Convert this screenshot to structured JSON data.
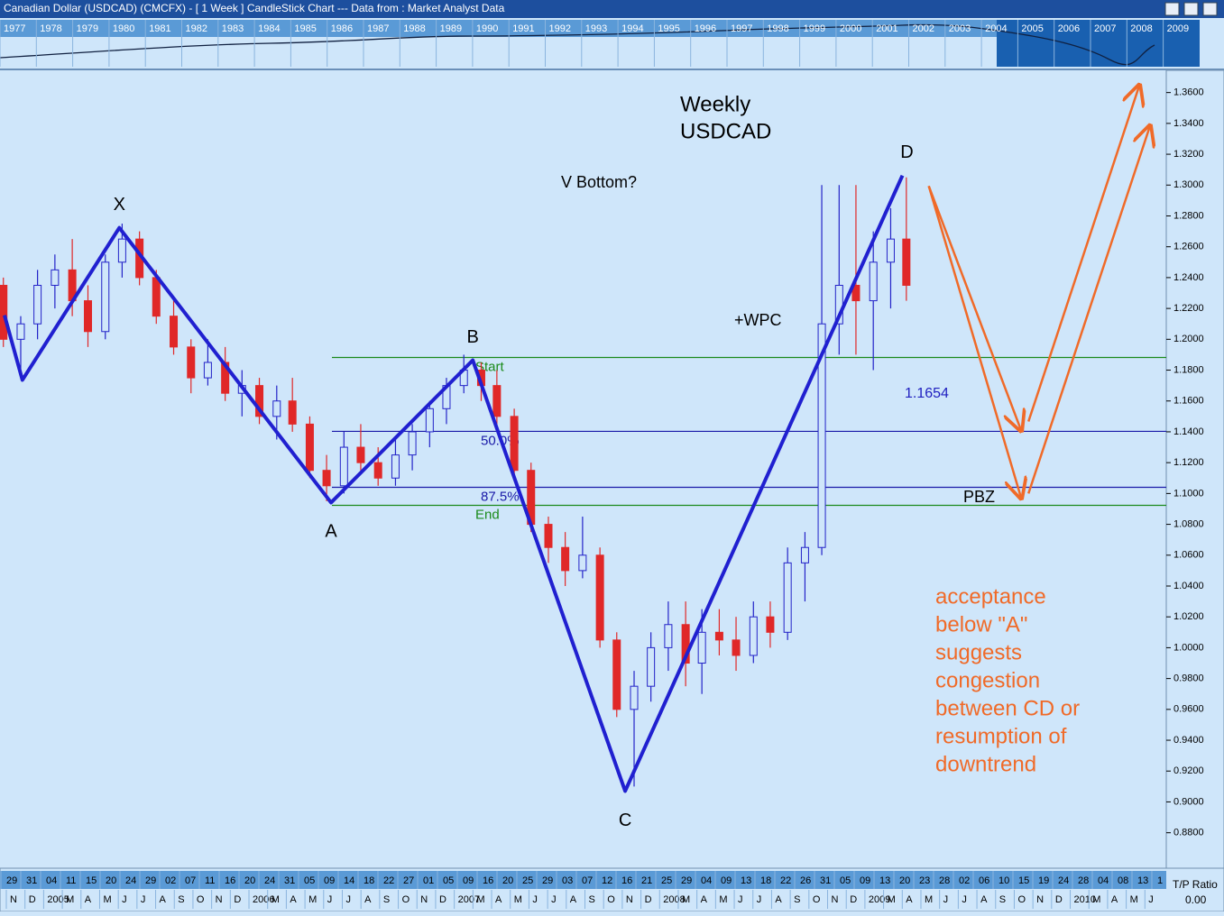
{
  "window_title": "Canadian Dollar (USDCAD) (CMCFX) -  [ 1 Week ] CandleStick Chart --- Data from : Market Analyst Data",
  "overview_years": [
    "1977",
    "1978",
    "1979",
    "1980",
    "1981",
    "1982",
    "1983",
    "1984",
    "1985",
    "1986",
    "1987",
    "1988",
    "1989",
    "1990",
    "1991",
    "1992",
    "1993",
    "1994",
    "1995",
    "1996",
    "1997",
    "1998",
    "1999",
    "2000",
    "2001",
    "2002",
    "2003",
    "2004",
    "2005",
    "2006",
    "2007",
    "2008",
    "2009"
  ],
  "chart_data": {
    "type": "candlestick",
    "xlim": [
      "2004-10-09",
      "2010-06-22"
    ],
    "ylim": [
      0.857,
      1.375
    ],
    "yticks": [
      {
        "value": 0.88,
        "label": "0.8800"
      },
      {
        "value": 0.9,
        "label": "0.9000"
      },
      {
        "value": 0.92,
        "label": "0.9200"
      },
      {
        "value": 0.94,
        "label": "0.9400"
      },
      {
        "value": 0.96,
        "label": "0.9600"
      },
      {
        "value": 0.98,
        "label": "0.9800"
      },
      {
        "value": 1.0,
        "label": "1.0000"
      },
      {
        "value": 1.02,
        "label": "1.0200"
      },
      {
        "value": 1.04,
        "label": "1.0400"
      },
      {
        "value": 1.06,
        "label": "1.0600"
      },
      {
        "value": 1.08,
        "label": "1.0800"
      },
      {
        "value": 1.1,
        "label": "1.1000"
      },
      {
        "value": 1.12,
        "label": "1.1200"
      },
      {
        "value": 1.14,
        "label": "1.1400"
      },
      {
        "value": 1.16,
        "label": "1.1600"
      },
      {
        "value": 1.18,
        "label": "1.1800"
      },
      {
        "value": 1.2,
        "label": "1.2000"
      },
      {
        "value": 1.22,
        "label": "1.2200"
      },
      {
        "value": 1.24,
        "label": "1.2400"
      },
      {
        "value": 1.26,
        "label": "1.2600"
      },
      {
        "value": 1.28,
        "label": "1.2800"
      },
      {
        "value": 1.3,
        "label": "1.3000"
      },
      {
        "value": 1.32,
        "label": "1.3200"
      },
      {
        "value": 1.34,
        "label": "1.3400"
      },
      {
        "value": 1.36,
        "label": "1.3600"
      }
    ],
    "x_day_labels": [
      "29",
      "31",
      "04",
      "11",
      "15",
      "20",
      "24",
      "29",
      "02",
      "07",
      "11",
      "16",
      "20",
      "24",
      "31",
      "05",
      "09",
      "14",
      "18",
      "22",
      "27",
      "01",
      "05",
      "09",
      "16",
      "20",
      "25",
      "29",
      "03",
      "07",
      "12",
      "16",
      "21",
      "25",
      "29",
      "04",
      "09",
      "13",
      "18",
      "22",
      "26",
      "31",
      "05",
      "09",
      "13",
      "20",
      "23",
      "28",
      "02",
      "06",
      "10",
      "15",
      "19",
      "24",
      "28",
      "04",
      "08",
      "13",
      "1"
    ],
    "x_month_labels": [
      "N",
      "D",
      "2005",
      "M",
      "A",
      "M",
      "J",
      "J",
      "A",
      "S",
      "O",
      "N",
      "D",
      "2006",
      "M",
      "A",
      "M",
      "J",
      "J",
      "A",
      "S",
      "O",
      "N",
      "D",
      "2007",
      "M",
      "A",
      "M",
      "J",
      "J",
      "A",
      "S",
      "O",
      "N",
      "D",
      "2008",
      "M",
      "A",
      "M",
      "J",
      "J",
      "A",
      "S",
      "O",
      "N",
      "D",
      "2009",
      "M",
      "A",
      "M",
      "J",
      "J",
      "A",
      "S",
      "O",
      "N",
      "D",
      "2010",
      "M",
      "A",
      "M",
      "J"
    ],
    "up_color": "#2323c8",
    "down_color": "#e02828",
    "x": [
      "2004-10-15",
      "2004-11-15",
      "2004-12-15",
      "2005-01-15",
      "2005-02-15",
      "2005-03-15",
      "2005-04-15",
      "2005-05-15",
      "2005-06-15",
      "2005-07-15",
      "2005-08-15",
      "2005-09-15",
      "2005-10-15",
      "2005-11-15",
      "2005-12-15",
      "2006-01-15",
      "2006-02-15",
      "2006-03-15",
      "2006-04-15",
      "2006-05-15",
      "2006-06-15",
      "2006-07-15",
      "2006-08-15",
      "2006-09-15",
      "2006-10-15",
      "2006-11-15",
      "2006-12-15",
      "2007-01-15",
      "2007-02-15",
      "2007-03-15",
      "2007-04-15",
      "2007-05-15",
      "2007-06-15",
      "2007-07-15",
      "2007-08-15",
      "2007-09-15",
      "2007-10-15",
      "2007-11-15",
      "2007-12-15",
      "2008-01-15",
      "2008-02-15",
      "2008-03-15",
      "2008-04-15",
      "2008-05-15",
      "2008-06-15",
      "2008-07-15",
      "2008-08-15",
      "2008-09-15",
      "2008-10-15",
      "2008-11-15",
      "2008-12-15",
      "2009-01-15",
      "2009-02-15",
      "2009-03-15"
    ],
    "open": [
      1.235,
      1.2,
      1.21,
      1.235,
      1.245,
      1.225,
      1.205,
      1.25,
      1.265,
      1.24,
      1.215,
      1.195,
      1.175,
      1.185,
      1.165,
      1.17,
      1.15,
      1.16,
      1.145,
      1.115,
      1.105,
      1.13,
      1.12,
      1.11,
      1.125,
      1.14,
      1.155,
      1.17,
      1.18,
      1.17,
      1.15,
      1.115,
      1.08,
      1.065,
      1.05,
      1.06,
      1.005,
      0.96,
      0.975,
      1.0,
      1.015,
      0.99,
      1.01,
      1.005,
      0.995,
      1.02,
      1.01,
      1.055,
      1.065,
      1.21,
      1.235,
      1.225,
      1.25,
      1.265
    ],
    "high": [
      1.24,
      1.215,
      1.245,
      1.255,
      1.265,
      1.235,
      1.255,
      1.275,
      1.27,
      1.245,
      1.225,
      1.2,
      1.2,
      1.195,
      1.18,
      1.175,
      1.17,
      1.175,
      1.15,
      1.125,
      1.14,
      1.145,
      1.13,
      1.135,
      1.145,
      1.16,
      1.175,
      1.19,
      1.185,
      1.18,
      1.155,
      1.12,
      1.085,
      1.075,
      1.085,
      1.065,
      1.01,
      0.985,
      1.01,
      1.03,
      1.03,
      1.025,
      1.025,
      1.02,
      1.03,
      1.03,
      1.065,
      1.075,
      1.3,
      1.3,
      1.3,
      1.27,
      1.285,
      1.305
    ],
    "low": [
      1.195,
      1.175,
      1.2,
      1.22,
      1.215,
      1.195,
      1.2,
      1.24,
      1.235,
      1.21,
      1.19,
      1.165,
      1.17,
      1.16,
      1.15,
      1.145,
      1.135,
      1.14,
      1.11,
      1.095,
      1.1,
      1.115,
      1.105,
      1.105,
      1.115,
      1.13,
      1.145,
      1.165,
      1.16,
      1.14,
      1.11,
      1.075,
      1.055,
      1.04,
      1.045,
      1.0,
      0.955,
      0.91,
      0.965,
      0.985,
      0.975,
      0.97,
      0.995,
      0.985,
      0.99,
      1.0,
      1.005,
      1.03,
      1.06,
      1.19,
      1.19,
      1.18,
      1.22,
      1.225
    ],
    "close": [
      1.2,
      1.21,
      1.235,
      1.245,
      1.225,
      1.205,
      1.25,
      1.265,
      1.24,
      1.215,
      1.195,
      1.175,
      1.185,
      1.165,
      1.17,
      1.15,
      1.16,
      1.145,
      1.115,
      1.105,
      1.13,
      1.12,
      1.11,
      1.125,
      1.14,
      1.155,
      1.17,
      1.18,
      1.17,
      1.15,
      1.115,
      1.08,
      1.065,
      1.05,
      1.06,
      1.005,
      0.96,
      0.975,
      1.0,
      1.015,
      0.99,
      1.01,
      1.005,
      0.995,
      1.02,
      1.01,
      1.055,
      1.065,
      1.21,
      1.235,
      1.225,
      1.25,
      1.265,
      1.235
    ],
    "pattern": {
      "color": "#2020d0",
      "x": [
        "2004-10-17",
        "2004-11-18",
        "2005-05-10",
        "2006-05-23",
        "2007-01-31",
        "2007-10-30",
        "2009-03-08"
      ],
      "values": [
        1.2156,
        1.1736,
        1.2723,
        1.0941,
        1.1864,
        0.907,
        1.3062
      ],
      "labels": [
        null,
        null,
        "X",
        "A",
        "B",
        "C",
        "D"
      ]
    },
    "levels": [
      {
        "name": "Start",
        "value": 1.1882,
        "color": "#1a8a1a"
      },
      {
        "name": "50.0%",
        "value": 1.1403,
        "color": "#1a1aa8"
      },
      {
        "name": "87.5%",
        "value": 1.104,
        "color": "#1a1aa8"
      },
      {
        "name": "End",
        "value": 1.0923,
        "color": "#1a8a1a"
      }
    ],
    "projections": {
      "color": "#f06a28",
      "paths": [
        {
          "x": [
            "2009-04-24",
            "2009-10-06"
          ],
          "values": [
            1.2994,
            1.1408
          ]
        },
        {
          "x": [
            "2009-04-24",
            "2009-10-06"
          ],
          "values": [
            1.2994,
            1.097
          ]
        },
        {
          "x": [
            "2009-10-19",
            "2010-05-05"
          ],
          "values": [
            1.1467,
            1.3647
          ]
        },
        {
          "x": [
            "2009-10-19",
            "2010-05-24"
          ],
          "values": [
            1.1,
            1.3384
          ]
        }
      ]
    },
    "annotations": [
      {
        "text": "Weekly",
        "color": "#000000"
      },
      {
        "text": "USDCAD",
        "color": "#000000"
      },
      {
        "text": "V Bottom?",
        "color": "#000000"
      },
      {
        "text": "+WPC",
        "color": "#000000"
      },
      {
        "text": "1.1654",
        "color": "#2020c0"
      },
      {
        "text": "PBZ",
        "color": "#000000"
      },
      {
        "text": "acceptance",
        "color": "#f06a28"
      },
      {
        "text": "below \"A\"",
        "color": "#f06a28"
      },
      {
        "text": "suggests",
        "color": "#f06a28"
      },
      {
        "text": "congestion",
        "color": "#f06a28"
      },
      {
        "text": "between CD or",
        "color": "#f06a28"
      },
      {
        "text": "resumption of",
        "color": "#f06a28"
      },
      {
        "text": "downtrend",
        "color": "#f06a28"
      }
    ],
    "ratio_label": "T/P Ratio",
    "ratio_value": "0.00"
  }
}
